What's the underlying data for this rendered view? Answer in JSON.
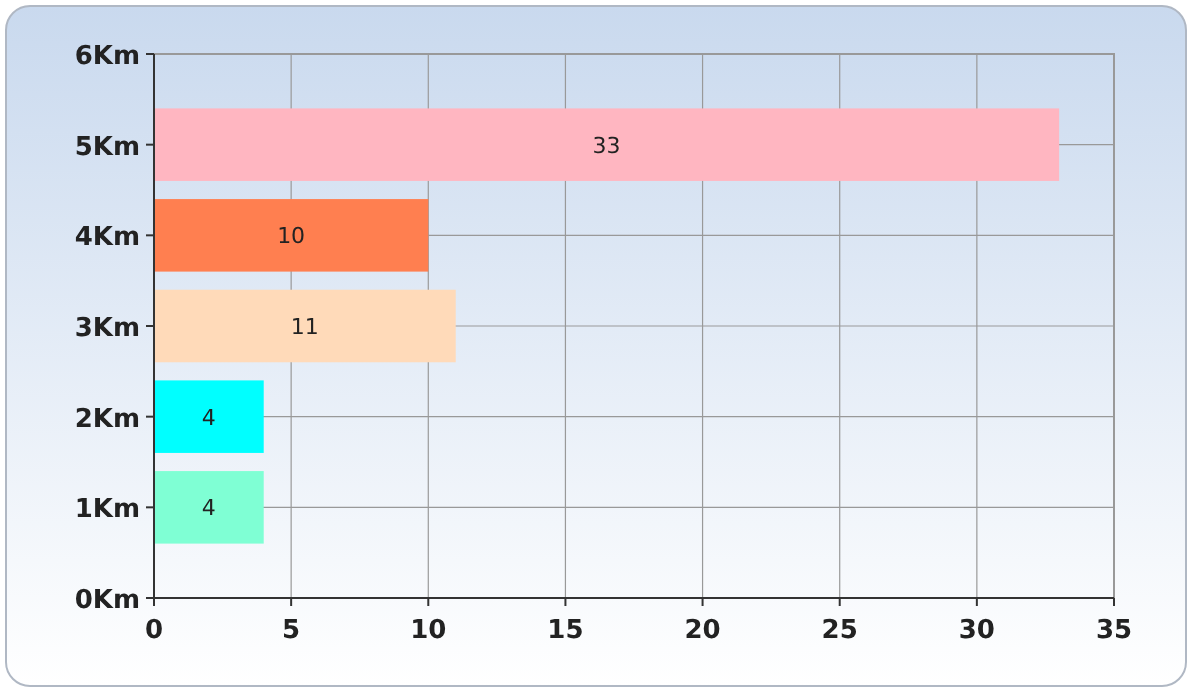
{
  "chart_data": {
    "type": "bar",
    "orientation": "horizontal",
    "categories": [
      "6Km",
      "5Km",
      "4Km",
      "3Km",
      "2Km",
      "1Km",
      "0Km"
    ],
    "values": [
      null,
      33,
      10,
      11,
      4,
      4,
      null
    ],
    "colors": [
      null,
      "#ffb6c1",
      "#ff7f50",
      "#ffdab9",
      "#00ffff",
      "#7fffd4",
      null
    ],
    "xlim": [
      0,
      35
    ],
    "xticks": [
      0,
      5,
      10,
      15,
      20,
      25,
      30,
      35
    ],
    "grid": true,
    "data_labels": true
  }
}
